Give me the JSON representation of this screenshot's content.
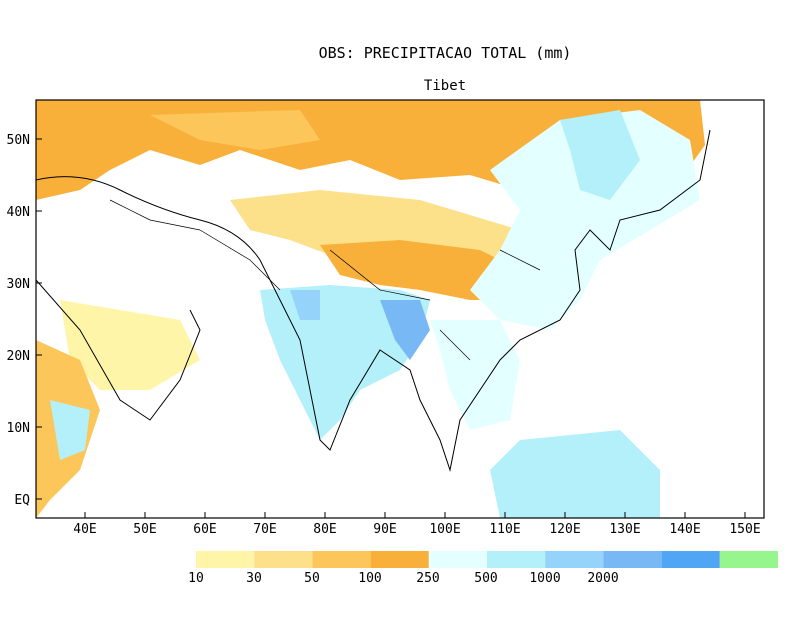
{
  "title": "OBS: PRECIPITACAO TOTAL (mm)",
  "subtitle": "Tibet",
  "lat_labels": [
    "50N",
    "40N",
    "30N",
    "20N",
    "10N",
    "EQ"
  ],
  "lon_labels": [
    "40E",
    "50E",
    "60E",
    "70E",
    "80E",
    "90E",
    "100E",
    "110E",
    "120E",
    "130E",
    "140E",
    "150E"
  ],
  "legend": {
    "colors": [
      "#fff5a8",
      "#fde18a",
      "#fdc65a",
      "#f9b03a",
      "#e3ffff",
      "#b4f0fa",
      "#96d3fa",
      "#78b8f5",
      "#50a5f5",
      "#96f58c"
    ],
    "labels": [
      "10",
      "30",
      "50",
      "100",
      "250",
      "500",
      "1000",
      "2000"
    ]
  }
}
